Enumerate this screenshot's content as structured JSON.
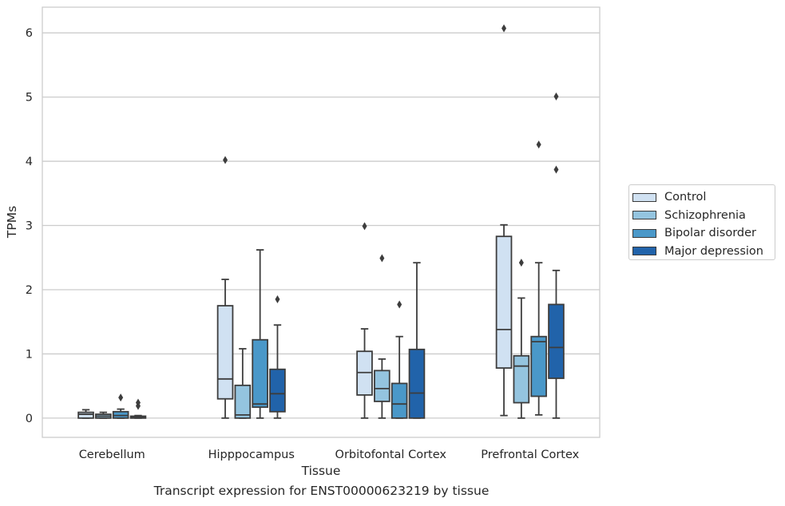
{
  "caption": "Transcript expression for ENST00000623219 by tissue",
  "chart_data": {
    "type": "box",
    "xlabel": "Tissue",
    "ylabel": "TPMs",
    "ylim": [
      -0.3,
      6.4
    ],
    "yticks": [
      0,
      1,
      2,
      3,
      4,
      5,
      6
    ],
    "grid": "horizontal",
    "legend_position": "right",
    "categories": [
      "Cerebellum",
      "Hipppocampus",
      "Orbitofontal Cortex",
      "Prefrontal Cortex"
    ],
    "series": [
      {
        "name": "Control",
        "color": "#d0e1f2",
        "boxes": [
          {
            "min": 0,
            "q1": 0,
            "median": 0.06,
            "q3": 0.09,
            "max": 0.13,
            "outliers": []
          },
          {
            "min": 0,
            "q1": 0.3,
            "median": 0.61,
            "q3": 1.75,
            "max": 2.16,
            "outliers": [
              4.02
            ]
          },
          {
            "min": 0,
            "q1": 0.36,
            "median": 0.71,
            "q3": 1.04,
            "max": 1.39,
            "outliers": [
              2.99
            ]
          },
          {
            "min": 0.04,
            "q1": 0.78,
            "median": 1.38,
            "q3": 2.83,
            "max": 3.01,
            "outliers": [
              6.07
            ]
          }
        ]
      },
      {
        "name": "Schizophrenia",
        "color": "#94c4df",
        "boxes": [
          {
            "min": 0,
            "q1": 0,
            "median": 0.03,
            "q3": 0.06,
            "max": 0.09,
            "outliers": []
          },
          {
            "min": 0,
            "q1": 0,
            "median": 0.05,
            "q3": 0.51,
            "max": 1.08,
            "outliers": []
          },
          {
            "min": 0,
            "q1": 0.26,
            "median": 0.46,
            "q3": 0.74,
            "max": 0.92,
            "outliers": [
              2.49
            ]
          },
          {
            "min": 0,
            "q1": 0.24,
            "median": 0.81,
            "q3": 0.97,
            "max": 1.87,
            "outliers": [
              2.42
            ]
          }
        ]
      },
      {
        "name": "Bipolar disorder",
        "color": "#4a98c9",
        "boxes": [
          {
            "min": 0,
            "q1": 0,
            "median": 0.04,
            "q3": 0.1,
            "max": 0.14,
            "outliers": [
              0.32
            ]
          },
          {
            "min": 0,
            "q1": 0.17,
            "median": 0.22,
            "q3": 1.22,
            "max": 2.62,
            "outliers": []
          },
          {
            "min": 0,
            "q1": 0,
            "median": 0.22,
            "q3": 0.54,
            "max": 1.27,
            "outliers": [
              1.77
            ]
          },
          {
            "min": 0.05,
            "q1": 0.34,
            "median": 1.19,
            "q3": 1.27,
            "max": 2.42,
            "outliers": [
              4.26
            ]
          }
        ]
      },
      {
        "name": "Major depression",
        "color": "#2163aa",
        "boxes": [
          {
            "min": 0,
            "q1": 0,
            "median": 0.01,
            "q3": 0.03,
            "max": 0.04,
            "outliers": [
              0.19,
              0.24
            ]
          },
          {
            "min": 0,
            "q1": 0.1,
            "median": 0.38,
            "q3": 0.76,
            "max": 1.45,
            "outliers": [
              1.85
            ]
          },
          {
            "min": 0,
            "q1": 0,
            "median": 0.39,
            "q3": 1.07,
            "max": 2.42,
            "outliers": []
          },
          {
            "min": 0,
            "q1": 0.62,
            "median": 1.1,
            "q3": 1.77,
            "max": 2.3,
            "outliers": [
              3.87,
              5.01
            ]
          }
        ]
      }
    ]
  }
}
